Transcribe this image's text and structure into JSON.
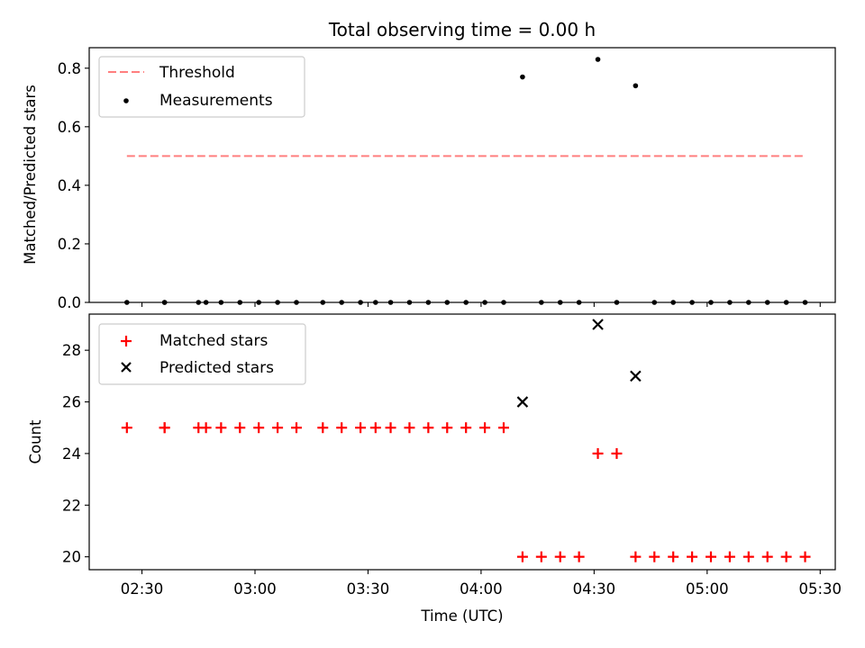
{
  "chart_data": [
    {
      "type": "scatter",
      "title": "Total observing time = 0.00 h",
      "xlabel": "",
      "ylabel": "Matched/Predicted stars",
      "ylim": [
        0,
        0.87
      ],
      "yticks": [
        "0.0",
        "0.2",
        "0.4",
        "0.6",
        "0.8"
      ],
      "legend_position": "top-left",
      "series": [
        {
          "name": "Threshold",
          "style": "dashed-line",
          "color": "#ff7f7f",
          "x": [
            "02:26",
            "05:26"
          ],
          "y": [
            0.5,
            0.5
          ]
        },
        {
          "name": "Measurements",
          "style": "dot",
          "color": "#000000",
          "x": [
            "02:26",
            "02:36",
            "02:36",
            "02:45",
            "02:47",
            "02:51",
            "02:56",
            "03:01",
            "03:06",
            "03:11",
            "03:18",
            "03:23",
            "03:28",
            "03:32",
            "03:36",
            "03:41",
            "03:46",
            "03:51",
            "03:56",
            "04:01",
            "04:06",
            "04:11",
            "04:16",
            "04:21",
            "04:26",
            "04:31",
            "04:36",
            "04:41",
            "04:46",
            "04:51",
            "04:56",
            "05:01",
            "05:06",
            "05:11",
            "05:16",
            "05:21",
            "05:26"
          ],
          "y": [
            0,
            0,
            0,
            0,
            0,
            0,
            0,
            0,
            0,
            0,
            0,
            0,
            0,
            0,
            0,
            0,
            0,
            0,
            0,
            0,
            0,
            0.77,
            0,
            0,
            0,
            0.83,
            0,
            0.74,
            0,
            0,
            0,
            0,
            0,
            0,
            0,
            0,
            0
          ]
        }
      ]
    },
    {
      "type": "scatter",
      "title": "",
      "xlabel": "Time (UTC)",
      "ylabel": "Count",
      "ylim": [
        19.5,
        29.4
      ],
      "yticks": [
        "20",
        "22",
        "24",
        "26",
        "28"
      ],
      "xticks": [
        "02:30",
        "03:00",
        "03:30",
        "04:00",
        "04:30",
        "05:00",
        "05:30"
      ],
      "legend_position": "top-left",
      "series": [
        {
          "name": "Matched stars",
          "style": "plus",
          "color": "#ff0000",
          "x": [
            "02:26",
            "02:36",
            "02:36",
            "02:45",
            "02:47",
            "02:51",
            "02:56",
            "03:01",
            "03:06",
            "03:11",
            "03:18",
            "03:23",
            "03:28",
            "03:32",
            "03:36",
            "03:41",
            "03:46",
            "03:51",
            "03:56",
            "04:01",
            "04:06",
            "04:11",
            "04:16",
            "04:21",
            "04:26",
            "04:31",
            "04:36",
            "04:41",
            "04:46",
            "04:51",
            "04:56",
            "05:01",
            "05:06",
            "05:11",
            "05:16",
            "05:21",
            "05:26"
          ],
          "y": [
            25,
            25,
            25,
            25,
            25,
            25,
            25,
            25,
            25,
            25,
            25,
            25,
            25,
            25,
            25,
            25,
            25,
            25,
            25,
            25,
            25,
            20,
            20,
            20,
            20,
            24,
            24,
            20,
            20,
            20,
            20,
            20,
            20,
            20,
            20,
            20,
            20
          ]
        },
        {
          "name": "Predicted stars",
          "style": "x",
          "color": "#000000",
          "x": [
            "04:11",
            "04:31",
            "04:41"
          ],
          "y": [
            26,
            29,
            27
          ]
        }
      ]
    }
  ]
}
